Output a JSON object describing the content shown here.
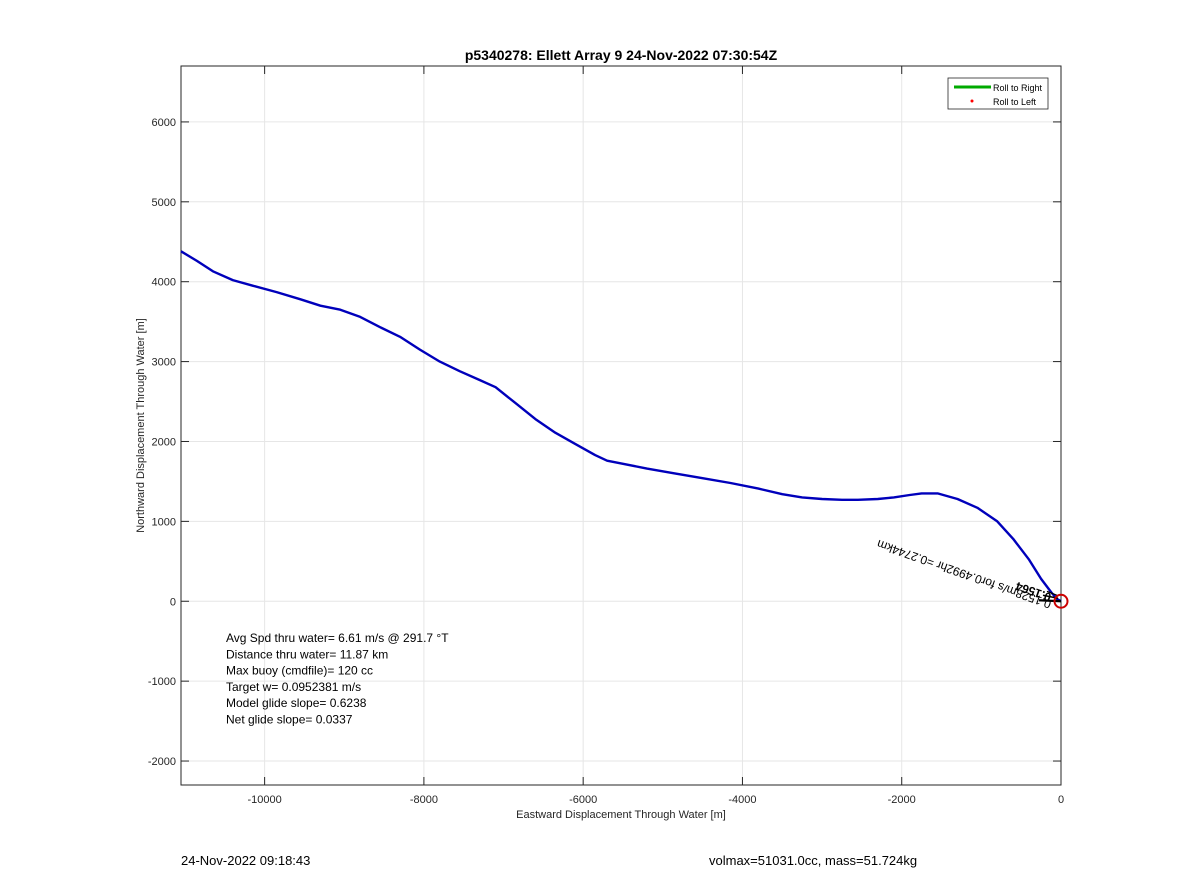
{
  "chart_data": {
    "type": "line",
    "title": "p5340278: Ellett Array 9 24-Nov-2022 07:30:54Z",
    "xlabel": "Eastward Displacement Through Water [m]",
    "ylabel": "Northward Displacement Through Water [m]",
    "xlim": [
      -11050,
      0
    ],
    "ylim": [
      -2300,
      6700
    ],
    "xticks": [
      -10000,
      -8000,
      -6000,
      -4000,
      -2000,
      0
    ],
    "yticks": [
      -2000,
      -1000,
      0,
      1000,
      2000,
      3000,
      4000,
      5000,
      6000
    ],
    "grid": true,
    "legend": {
      "placement": "top-right",
      "entries": [
        {
          "label": "Roll to Right",
          "color": "#00aa00",
          "marker": "line"
        },
        {
          "label": "Roll to Left",
          "color": "#ff0000",
          "marker": "dot"
        }
      ]
    },
    "series": [
      {
        "color": "#0000bb",
        "x": [
          -11050,
          -10850,
          -10650,
          -10400,
          -10150,
          -9850,
          -9550,
          -9300,
          -9050,
          -8800,
          -8550,
          -8300,
          -8050,
          -7800,
          -7550,
          -7300,
          -7100,
          -6850,
          -6600,
          -6350,
          -6100,
          -5850,
          -5700,
          -5500,
          -5200,
          -4850,
          -4500,
          -4150,
          -3800,
          -3500,
          -3250,
          -3000,
          -2750,
          -2550,
          -2300,
          -2100,
          -1900,
          -1750,
          -1550,
          -1300,
          -1050,
          -800,
          -600,
          -400,
          -250,
          -120,
          -50,
          0
        ],
        "y": [
          4380,
          4260,
          4130,
          4020,
          3950,
          3870,
          3780,
          3700,
          3650,
          3560,
          3430,
          3310,
          3150,
          3000,
          2880,
          2770,
          2680,
          2480,
          2280,
          2110,
          1970,
          1830,
          1760,
          1720,
          1660,
          1600,
          1540,
          1480,
          1410,
          1340,
          1300,
          1280,
          1270,
          1270,
          1280,
          1300,
          1330,
          1350,
          1350,
          1280,
          1170,
          1000,
          780,
          520,
          280,
          110,
          30,
          0
        ]
      }
    ],
    "annotations": [
      {
        "text": "Avg Spd thru water=  6.61 m/s @ 291.7 °T"
      },
      {
        "text": "Distance thru water= 11.87 km"
      },
      {
        "text": "Max buoy (cmdfile)= 120 cc"
      },
      {
        "text": "Target w= 0.0952381 m/s"
      },
      {
        "text": "Model glide slope= 0.6238"
      },
      {
        "text": "Net glide slope= 0.0337"
      }
    ],
    "vector_label": "0.1528m/s for0.4992hr =0.2744km",
    "vector_label_overlap": "0.1564"
  },
  "footer": {
    "left": "24-Nov-2022 09:18:43",
    "right": "volmax=51031.0cc, mass=51.724kg"
  }
}
